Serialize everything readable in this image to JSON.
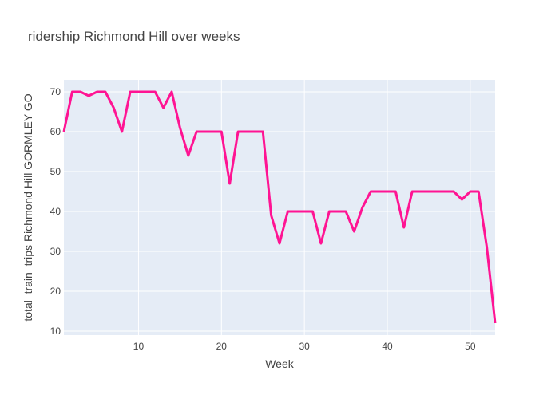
{
  "chart_data": {
    "type": "line",
    "title": "ridership Richmond Hill over weeks",
    "xlabel": "Week",
    "ylabel": "total_train_trips Richmond Hill GORMLEY GO",
    "xlim": [
      1,
      53
    ],
    "ylim": [
      9,
      73
    ],
    "x_ticks": [
      10,
      20,
      30,
      40,
      50
    ],
    "y_ticks": [
      10,
      20,
      30,
      40,
      50,
      60,
      70
    ],
    "grid": true,
    "line_color": "#ff1493",
    "plot_bg": "#e5ecf6",
    "series": [
      {
        "x": [
          1,
          2,
          3,
          4,
          5,
          6,
          7,
          8,
          9,
          10,
          11,
          12,
          13,
          14,
          15,
          16,
          17,
          18,
          19,
          20,
          21,
          22,
          23,
          24,
          25,
          26,
          27,
          28,
          29,
          30,
          31,
          32,
          33,
          34,
          35,
          36,
          37,
          38,
          39,
          40,
          41,
          42,
          43,
          44,
          45,
          46,
          47,
          48,
          49,
          50,
          51,
          52,
          53
        ],
        "values": [
          60,
          70,
          70,
          69,
          70,
          70,
          66,
          60,
          70,
          70,
          70,
          70,
          66,
          70,
          61,
          54,
          60,
          60,
          60,
          60,
          47,
          60,
          60,
          60,
          60,
          39,
          32,
          40,
          40,
          40,
          40,
          32,
          40,
          40,
          40,
          35,
          41,
          45,
          45,
          45,
          45,
          36,
          45,
          45,
          45,
          45,
          45,
          45,
          43,
          45,
          45,
          31,
          12
        ]
      }
    ]
  }
}
